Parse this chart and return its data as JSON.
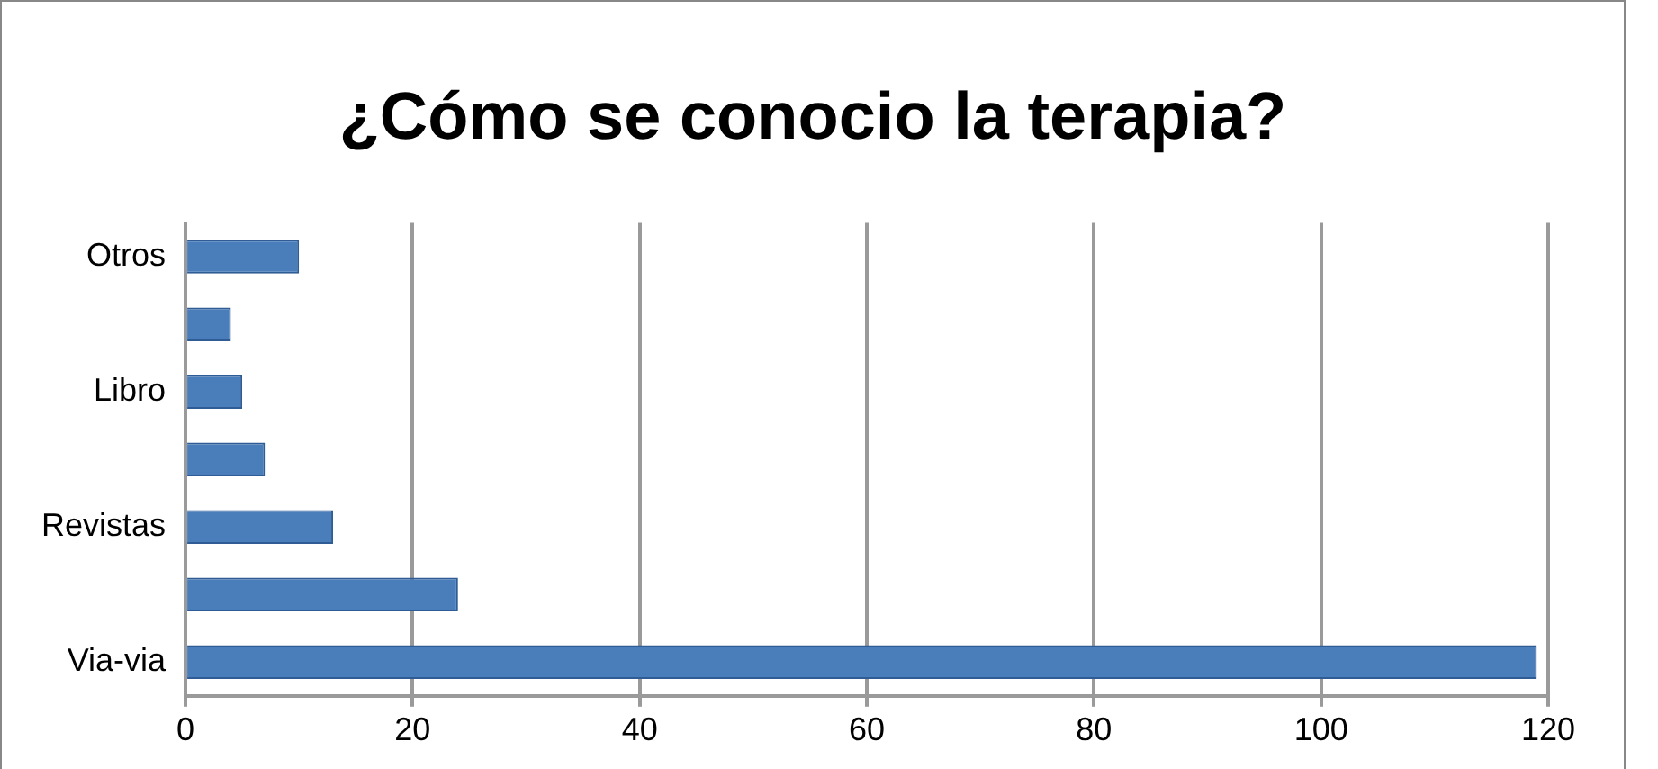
{
  "chart_data": {
    "type": "bar",
    "orientation": "horizontal",
    "title": "¿Cómo se conocio la terapia?",
    "categories": [
      "Otros",
      null,
      "Libro",
      null,
      "Revistas",
      null,
      "Via-via"
    ],
    "values": [
      10,
      4,
      5,
      7,
      13,
      24,
      119
    ],
    "color": "#4a7ebb",
    "xlim": [
      0,
      120
    ],
    "xticks": [
      0,
      20,
      40,
      60,
      80,
      100,
      120
    ],
    "grid": "x"
  }
}
